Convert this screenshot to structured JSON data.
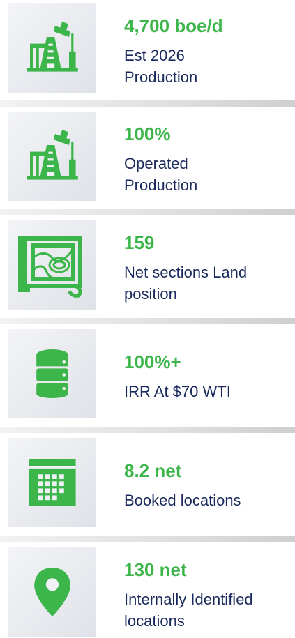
{
  "items": [
    {
      "value": "4,700 boe/d",
      "lines": [
        "Est 2026",
        "Production"
      ]
    },
    {
      "value": "100%",
      "lines": [
        "Operated",
        "Production"
      ]
    },
    {
      "value": "159",
      "lines": [
        "Net sections Land",
        "position"
      ]
    },
    {
      "value": "100%+",
      "lines": [
        "IRR At $70 WTI"
      ]
    },
    {
      "value": "8.2 net",
      "lines": [
        "Booked locations"
      ]
    },
    {
      "value": "130 net",
      "lines": [
        "Internally Identified",
        "locations"
      ]
    }
  ]
}
